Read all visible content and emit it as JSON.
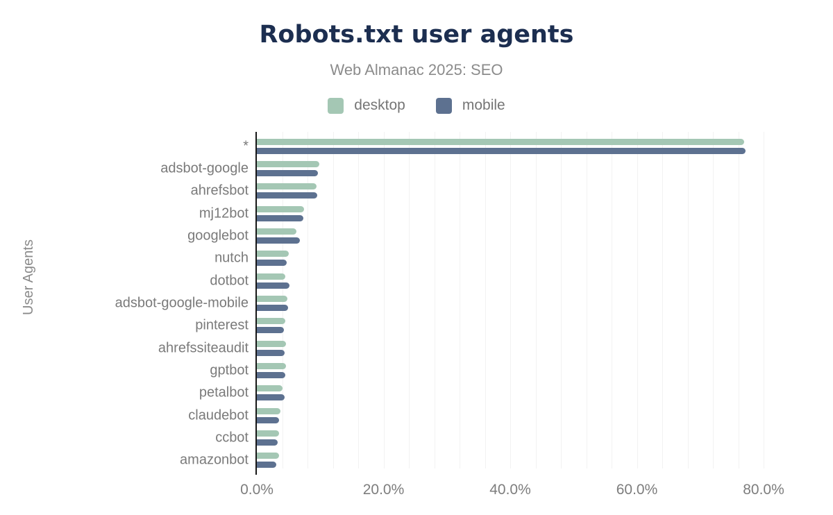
{
  "header": {
    "title": "Robots.txt user agents",
    "subtitle": "Web Almanac 2025: SEO"
  },
  "colors": {
    "desktop": "#a4c7b4",
    "mobile": "#5d7190",
    "title": "#1c2e50",
    "subtitle": "#8b8b8b",
    "axis": "#161616",
    "grid": "#f2f2f2",
    "category_label": "#7a7a7a",
    "tick_label": "#7d7d7d"
  },
  "legend": [
    {
      "label": "desktop",
      "color": "#a4c7b4"
    },
    {
      "label": "mobile",
      "color": "#5d7190"
    }
  ],
  "chart_data": {
    "type": "bar",
    "orientation": "horizontal",
    "title": "Robots.txt user agents",
    "subtitle": "Web Almanac 2025: SEO",
    "xlabel": "",
    "ylabel": "User Agents",
    "categories": [
      "*",
      "adsbot-google",
      "ahrefsbot",
      "mj12bot",
      "googlebot",
      "nutch",
      "dotbot",
      "adsbot-google-mobile",
      "pinterest",
      "ahrefssiteaudit",
      "gptbot",
      "petalbot",
      "claudebot",
      "ccbot",
      "amazonbot"
    ],
    "series": [
      {
        "name": "desktop",
        "color": "#a4c7b4",
        "values": [
          76.9,
          9.9,
          9.4,
          7.4,
          6.3,
          5.0,
          4.5,
          4.8,
          4.5,
          4.6,
          4.6,
          4.1,
          3.7,
          3.5,
          3.5
        ]
      },
      {
        "name": "mobile",
        "color": "#5d7190",
        "values": [
          77.1,
          9.6,
          9.5,
          7.3,
          6.8,
          4.7,
          5.1,
          4.9,
          4.3,
          4.4,
          4.5,
          4.4,
          3.5,
          3.3,
          3.1
        ]
      }
    ],
    "value_unit": "%",
    "x_ticks": [
      "0.0%",
      "20.0%",
      "40.0%",
      "60.0%",
      "80.0%"
    ],
    "x_tick_values": [
      0,
      20,
      40,
      60,
      80
    ],
    "xlim": [
      0,
      80
    ],
    "minor_grid_step": 4,
    "grid": "vertical, minor every 4%, light gray",
    "legend_position": "top-center"
  }
}
